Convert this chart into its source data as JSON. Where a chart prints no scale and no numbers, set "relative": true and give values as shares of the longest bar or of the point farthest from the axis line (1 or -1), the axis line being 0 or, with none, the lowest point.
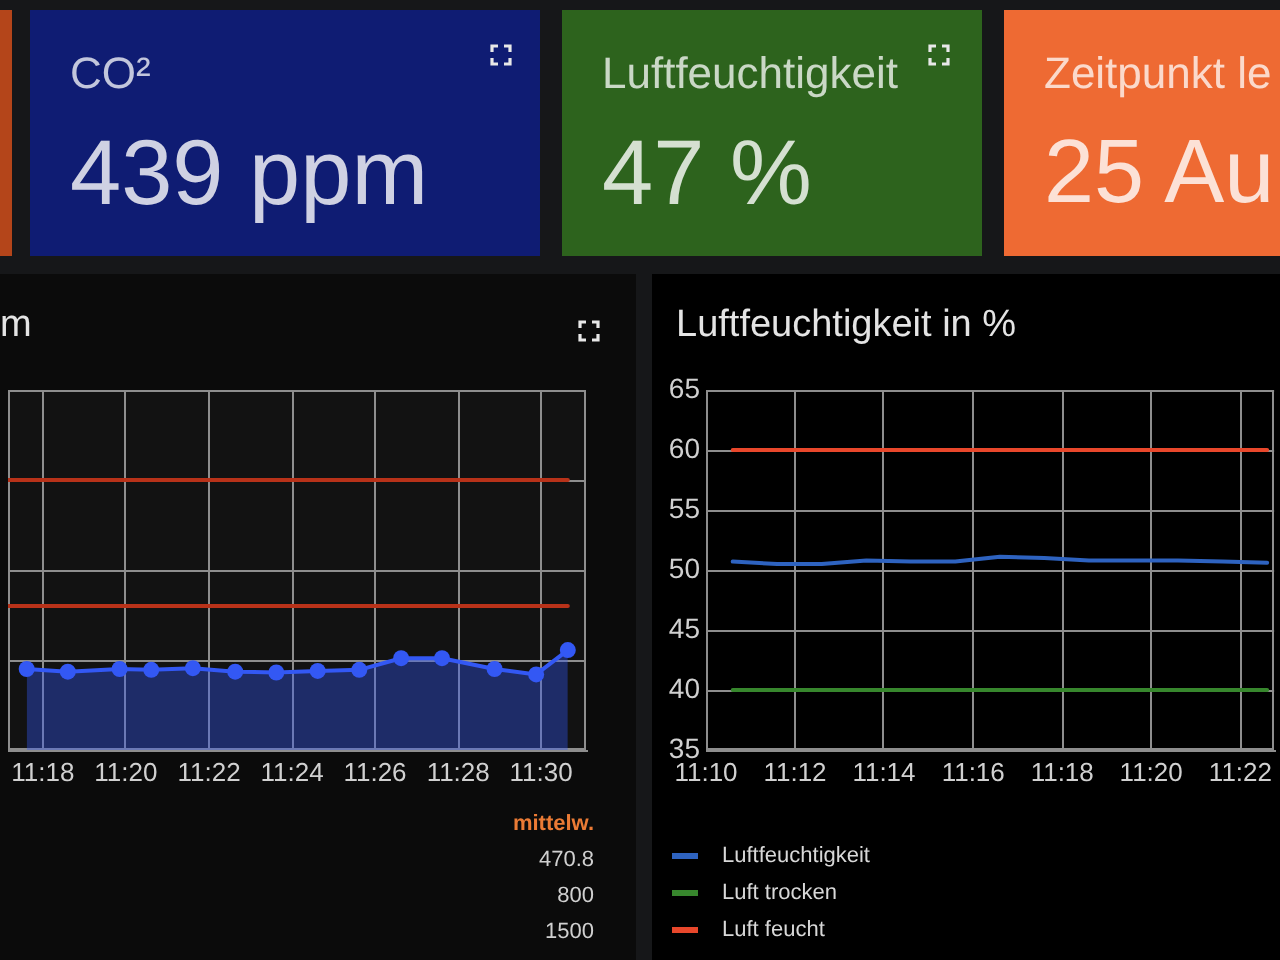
{
  "chart_data": [
    {
      "type": "other",
      "title": "CO²",
      "annotations": [
        "439 ppm"
      ],
      "color": "#0f1c73"
    },
    {
      "type": "other",
      "title": "Luftfeuchtigkeit",
      "annotations": [
        "47 %"
      ],
      "color": "#2d631d"
    },
    {
      "type": "other",
      "title": "Zeitpunkt le",
      "annotations": [
        "25 Au"
      ],
      "color": "#ee6a33"
    },
    {
      "type": "area",
      "title": "m",
      "relative": true,
      "marker": "circle",
      "grid": true,
      "tick_labels": "x",
      "xlim": [
        11.286,
        11.518
      ],
      "xticks": [
        {
          "value": 11.3,
          "label": "11:18"
        },
        {
          "value": 11.3333,
          "label": "11:20"
        },
        {
          "value": 11.3667,
          "label": "11:22"
        },
        {
          "value": 11.4,
          "label": "11:24"
        },
        {
          "value": 11.4333,
          "label": "11:26"
        },
        {
          "value": 11.4667,
          "label": "11:28"
        },
        {
          "value": 11.5,
          "label": "11:30"
        }
      ],
      "series": [
        {
          "type": "area",
          "color": "#3358f4",
          "x": [
            11.2935,
            11.31,
            11.3308,
            11.3435,
            11.3602,
            11.3772,
            11.3937,
            11.4103,
            11.427,
            11.4438,
            11.4602,
            11.4813,
            11.498,
            11.5107
          ],
          "values": [
            0.3,
            0.29,
            0.3,
            0.297,
            0.303,
            0.29,
            0.287,
            0.293,
            0.297,
            0.34,
            0.34,
            0.3,
            0.28,
            0.37
          ]
        },
        {
          "type": "line",
          "marker": "none",
          "color": "#b83219",
          "x": [
            11.286,
            11.5107
          ],
          "values": [
            0.533,
            0.533
          ]
        },
        {
          "type": "line",
          "marker": "none",
          "color": "#b83219",
          "x": [
            11.286,
            11.5107
          ],
          "values": [
            1,
            1
          ]
        }
      ],
      "annotations": [
        "mittelw.",
        "470.8",
        "800",
        "1500"
      ]
    },
    {
      "type": "line",
      "title": "Luftfeuchtigkeit in %",
      "grid": true,
      "legend": "bottom",
      "xlim": [
        11.1667,
        11.3793
      ],
      "xticks": [
        {
          "value": 11.1667,
          "label": "11:10"
        },
        {
          "value": 11.2,
          "label": "11:12"
        },
        {
          "value": 11.2333,
          "label": "11:14"
        },
        {
          "value": 11.2667,
          "label": "11:16"
        },
        {
          "value": 11.3,
          "label": "11:18"
        },
        {
          "value": 11.3333,
          "label": "11:20"
        },
        {
          "value": 11.3667,
          "label": "11:22"
        }
      ],
      "ylim": [
        35,
        65
      ],
      "yticks": [
        35,
        40,
        45,
        50,
        55,
        60,
        65
      ],
      "x": [
        11.1767,
        11.1933,
        11.21,
        11.2267,
        11.2433,
        11.26,
        11.2767,
        11.2933,
        11.31,
        11.3267,
        11.3433,
        11.36,
        11.3767
      ],
      "series": [
        {
          "name": "Luftfeuchtigkeit",
          "color": "#2e63c0",
          "values": [
            50.7,
            50.5,
            50.5,
            50.8,
            50.7,
            50.7,
            51.1,
            51.0,
            50.8,
            50.8,
            50.8,
            50.7,
            50.6
          ]
        },
        {
          "name": "Luft trocken",
          "color": "#37872d",
          "values": [
            40,
            40,
            40,
            40,
            40,
            40,
            40,
            40,
            40,
            40,
            40,
            40,
            40
          ]
        },
        {
          "name": "Luft feucht",
          "color": "#e8472b",
          "values": [
            60,
            60,
            60,
            60,
            60,
            60,
            60,
            60,
            60,
            60,
            60,
            60,
            60
          ]
        }
      ]
    }
  ]
}
